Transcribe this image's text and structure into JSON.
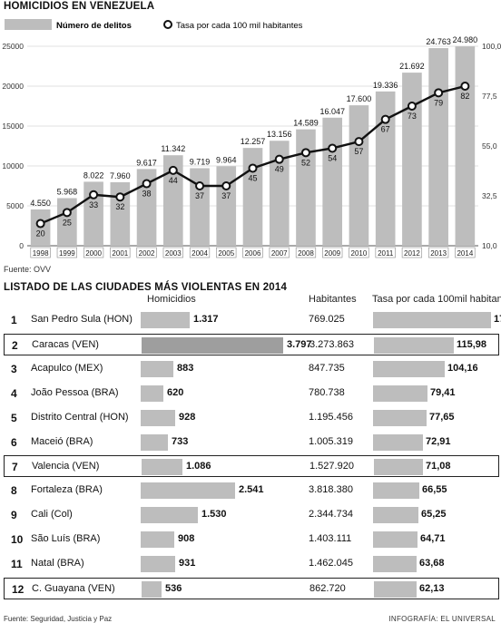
{
  "chart_data": {
    "type": "bar",
    "title": "HOMICIDIOS EN VENEZUELA",
    "legend": {
      "bar_label": "Número de delitos",
      "line_label": "Tasa por cada 100 mil habitantes"
    },
    "categories": [
      "1998",
      "1999",
      "2000",
      "2001",
      "2002",
      "2003",
      "2004",
      "2005",
      "2006",
      "2007",
      "2008",
      "2009",
      "2010",
      "2011",
      "2012",
      "2013",
      "2014"
    ],
    "series": [
      {
        "name": "Número de delitos",
        "type": "bar",
        "values": [
          4550,
          5968,
          8022,
          7960,
          9617,
          11342,
          9719,
          9964,
          12257,
          13156,
          14589,
          16047,
          17600,
          19336,
          21692,
          24763,
          24980
        ],
        "labels": [
          "4.550",
          "5.968",
          "8.022",
          "7.960",
          "9.617",
          "11.342",
          "9.719",
          "9.964",
          "12.257",
          "13.156",
          "14.589",
          "16.047",
          "17.600",
          "19.336",
          "21.692",
          "24.763",
          "24.980"
        ]
      },
      {
        "name": "Tasa por cada 100 mil habitantes",
        "type": "line",
        "values": [
          20,
          25,
          33,
          32,
          38,
          44,
          37,
          37,
          45,
          49,
          52,
          54,
          57,
          67,
          73,
          79,
          82
        ]
      }
    ],
    "left_axis": {
      "ticks": [
        "0",
        "5000",
        "10000",
        "15000",
        "20000",
        "25000"
      ],
      "ylim": [
        0,
        25000
      ]
    },
    "right_axis": {
      "ticks": [
        "10,0",
        "32,5",
        "55,0",
        "77,5",
        "100,0"
      ],
      "ylim": [
        10,
        100
      ]
    },
    "source": "Fuente: OVV"
  },
  "table": {
    "title": "LISTADO DE LAS CIUDADES MÁS VIOLENTAS EN 2014",
    "headers": {
      "homicidios": "Homicidios",
      "habitantes": "Habitantes",
      "tasa": "Tasa por cada 100mil habitantes"
    },
    "rows": [
      {
        "rank": "1",
        "city": "San Pedro Sula (HON)",
        "homicidios": "1.317",
        "homicidios_n": 1317,
        "habitantes": "769.025",
        "tasa": "171,2",
        "tasa_n": 171.2,
        "highlight": false
      },
      {
        "rank": "2",
        "city": "Caracas (VEN)",
        "homicidios": "3.797",
        "homicidios_n": 3797,
        "habitantes": "3.273.863",
        "tasa": "115,98",
        "tasa_n": 115.98,
        "highlight": true
      },
      {
        "rank": "3",
        "city": "Acapulco (MEX)",
        "homicidios": "883",
        "homicidios_n": 883,
        "habitantes": "847.735",
        "tasa": "104,16",
        "tasa_n": 104.16,
        "highlight": false
      },
      {
        "rank": "4",
        "city": "João Pessoa (BRA)",
        "homicidios": "620",
        "homicidios_n": 620,
        "habitantes": "780.738",
        "tasa": "79,41",
        "tasa_n": 79.41,
        "highlight": false
      },
      {
        "rank": "5",
        "city": "Distrito Central (HON)",
        "homicidios": "928",
        "homicidios_n": 928,
        "habitantes": "1.195.456",
        "tasa": "77,65",
        "tasa_n": 77.65,
        "highlight": false
      },
      {
        "rank": "6",
        "city": "Maceió (BRA)",
        "homicidios": "733",
        "homicidios_n": 733,
        "habitantes": "1.005.319",
        "tasa": "72,91",
        "tasa_n": 72.91,
        "highlight": false
      },
      {
        "rank": "7",
        "city": "Valencia (VEN)",
        "homicidios": "1.086",
        "homicidios_n": 1086,
        "habitantes": "1.527.920",
        "tasa": "71,08",
        "tasa_n": 71.08,
        "highlight": true
      },
      {
        "rank": "8",
        "city": "Fortaleza (BRA)",
        "homicidios": "2.541",
        "homicidios_n": 2541,
        "habitantes": "3.818.380",
        "tasa": "66,55",
        "tasa_n": 66.55,
        "highlight": false
      },
      {
        "rank": "9",
        "city": "Cali (Col)",
        "homicidios": "1.530",
        "homicidios_n": 1530,
        "habitantes": "2.344.734",
        "tasa": "65,25",
        "tasa_n": 65.25,
        "highlight": false
      },
      {
        "rank": "10",
        "city": "São Luís (BRA)",
        "homicidios": "908",
        "homicidios_n": 908,
        "habitantes": "1.403.111",
        "tasa": "64,71",
        "tasa_n": 64.71,
        "highlight": false
      },
      {
        "rank": "11",
        "city": "Natal (BRA)",
        "homicidios": "931",
        "homicidios_n": 931,
        "habitantes": "1.462.045",
        "tasa": "63,68",
        "tasa_n": 63.68,
        "highlight": false
      },
      {
        "rank": "12",
        "city": "C. Guayana (VEN)",
        "homicidios": "536",
        "homicidios_n": 536,
        "habitantes": "862.720",
        "tasa": "62,13",
        "tasa_n": 62.13,
        "highlight": true
      }
    ],
    "source": "Fuente: Seguridad, Justicia y Paz",
    "credit": "INFOGRAFÍA: EL UNIVERSAL"
  },
  "colors": {
    "bar": "#bdbdbd",
    "highlight_bar": "#9e9e9e",
    "line": "#111111",
    "text": "#111111"
  }
}
